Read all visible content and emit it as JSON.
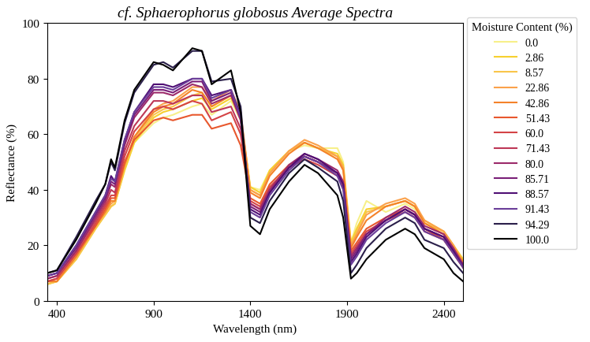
{
  "chart_data": {
    "type": "line",
    "title": "cf. Sphaerophorus globosus Average Spectra",
    "x_label": "Wavelength (nm)",
    "y_label": "Reflectance (%)",
    "legend_title": "Moisture Content (%)",
    "legend": "upper left",
    "grid": false,
    "x": [
      350,
      400,
      500,
      600,
      650,
      680,
      700,
      750,
      800,
      900,
      950,
      1000,
      1100,
      1150,
      1200,
      1300,
      1350,
      1400,
      1450,
      1500,
      1600,
      1680,
      1750,
      1850,
      1880,
      1920,
      1950,
      2000,
      2100,
      2200,
      2250,
      2300,
      2400,
      2450,
      2500
    ],
    "xlim": [
      350,
      2500
    ],
    "xticks": [
      400,
      900,
      1400,
      1900,
      2400
    ],
    "ylim": [
      0,
      100
    ],
    "yticks": [
      0,
      20,
      40,
      60,
      80,
      100
    ],
    "series": [
      {
        "name": "0.0",
        "color": "#f7f08a",
        "values": [
          6,
          7,
          15,
          26,
          31,
          34,
          35,
          47,
          57,
          64,
          66,
          67,
          70,
          71,
          67,
          72,
          65,
          41,
          40,
          47,
          54,
          56,
          55,
          55,
          50,
          21,
          28,
          36,
          32,
          35,
          33,
          28,
          24,
          19,
          14
        ]
      },
      {
        "name": "2.86",
        "color": "#f6d02f",
        "values": [
          6,
          7,
          15,
          26,
          31,
          34,
          35,
          47,
          57,
          66,
          68,
          69,
          72,
          73,
          69,
          73,
          66,
          41,
          39,
          47,
          54,
          57,
          55,
          53,
          49,
          21,
          26,
          33,
          34,
          36,
          34,
          29,
          25,
          20,
          15
        ]
      },
      {
        "name": "8.57",
        "color": "#f9c54a",
        "values": [
          6,
          7,
          15,
          26,
          31,
          34,
          35,
          48,
          58,
          67,
          69,
          70,
          74,
          75,
          70,
          74,
          67,
          40,
          38,
          46,
          54,
          57,
          55,
          52,
          48,
          20,
          25,
          32,
          34,
          36,
          34,
          28,
          25,
          20,
          14
        ]
      },
      {
        "name": "22.86",
        "color": "#fba14a",
        "values": [
          7,
          7,
          16,
          27,
          32,
          35,
          36,
          49,
          59,
          69,
          71,
          72,
          77,
          77,
          72,
          76,
          68,
          40,
          38,
          46,
          54,
          58,
          56,
          52,
          48,
          20,
          24,
          31,
          35,
          37,
          35,
          29,
          25,
          20,
          14
        ]
      },
      {
        "name": "42.86",
        "color": "#f4822a",
        "values": [
          7,
          7,
          16,
          27,
          32,
          36,
          36,
          49,
          59,
          68,
          70,
          71,
          76,
          75,
          70,
          74,
          66,
          39,
          37,
          45,
          53,
          57,
          55,
          51,
          47,
          19,
          23,
          29,
          34,
          36,
          34,
          28,
          24,
          19,
          14
        ]
      },
      {
        "name": "51.43",
        "color": "#e8582e",
        "values": [
          7,
          8,
          17,
          27,
          33,
          37,
          37,
          50,
          58,
          65,
          66,
          65,
          67,
          67,
          62,
          64,
          56,
          37,
          35,
          42,
          49,
          52,
          50,
          46,
          42,
          18,
          21,
          26,
          30,
          33,
          31,
          26,
          22,
          17,
          12
        ]
      },
      {
        "name": "60.0",
        "color": "#d44446",
        "values": [
          7,
          8,
          17,
          28,
          34,
          38,
          38,
          52,
          61,
          69,
          70,
          69,
          72,
          71,
          65,
          68,
          60,
          36,
          34,
          41,
          48,
          51,
          49,
          45,
          41,
          17,
          20,
          25,
          29,
          32,
          30,
          25,
          22,
          17,
          12
        ]
      },
      {
        "name": "71.43",
        "color": "#bd3757",
        "values": [
          8,
          9,
          18,
          29,
          35,
          40,
          39,
          54,
          63,
          72,
          72,
          71,
          74,
          74,
          68,
          70,
          62,
          35,
          33,
          40,
          48,
          52,
          50,
          46,
          42,
          16,
          19,
          24,
          29,
          33,
          31,
          26,
          23,
          18,
          13
        ]
      },
      {
        "name": "80.0",
        "color": "#9c2a6a",
        "values": [
          8,
          9,
          18,
          30,
          36,
          42,
          41,
          56,
          66,
          75,
          75,
          74,
          78,
          77,
          71,
          74,
          65,
          35,
          33,
          40,
          49,
          53,
          51,
          47,
          43,
          16,
          19,
          24,
          30,
          34,
          32,
          27,
          24,
          19,
          13
        ]
      },
      {
        "name": "85.71",
        "color": "#7a1f78",
        "values": [
          9,
          10,
          19,
          31,
          37,
          43,
          42,
          57,
          67,
          76,
          76,
          75,
          79,
          79,
          72,
          75,
          66,
          34,
          32,
          39,
          48,
          52,
          50,
          46,
          42,
          15,
          18,
          24,
          29,
          33,
          31,
          26,
          23,
          18,
          13
        ]
      },
      {
        "name": "88.57",
        "color": "#4f0f74",
        "values": [
          9,
          10,
          20,
          32,
          38,
          45,
          43,
          58,
          68,
          78,
          78,
          77,
          80,
          80,
          74,
          76,
          67,
          33,
          31,
          39,
          48,
          53,
          51,
          46,
          42,
          14,
          17,
          23,
          29,
          33,
          31,
          26,
          23,
          18,
          12
        ]
      },
      {
        "name": "91.43",
        "color": "#6a3d99",
        "values": [
          9,
          10,
          20,
          32,
          38,
          44,
          43,
          58,
          68,
          77,
          77,
          76,
          80,
          80,
          73,
          76,
          66,
          32,
          30,
          38,
          47,
          52,
          50,
          45,
          40,
          13,
          16,
          22,
          28,
          32,
          30,
          25,
          22,
          17,
          12
        ]
      },
      {
        "name": "94.29",
        "color": "#2a1f4a",
        "values": [
          10,
          11,
          23,
          36,
          42,
          50,
          47,
          64,
          75,
          85,
          86,
          84,
          90,
          90,
          79,
          80,
          70,
          30,
          28,
          36,
          46,
          51,
          48,
          43,
          36,
          10,
          13,
          19,
          26,
          30,
          28,
          22,
          19,
          14,
          10
        ]
      },
      {
        "name": "100.0",
        "color": "#000000",
        "values": [
          10,
          11,
          22,
          35,
          42,
          51,
          48,
          65,
          76,
          86,
          85,
          83,
          91,
          90,
          78,
          83,
          68,
          27,
          24,
          33,
          43,
          49,
          46,
          38,
          30,
          8,
          10,
          15,
          22,
          26,
          24,
          19,
          15,
          10,
          7
        ]
      }
    ]
  }
}
